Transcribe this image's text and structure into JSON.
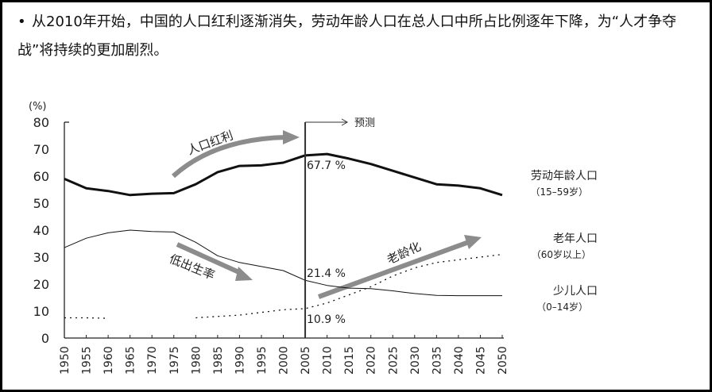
{
  "headline": {
    "bullet": "•",
    "text": "从2010年开始，中国的人口红利逐渐消失，劳动年龄人口在总人口中所占比例逐年下降，为“人才争夺战”将持续的更加剧烈。"
  },
  "chart_data": {
    "type": "line",
    "title": "",
    "xlabel": "",
    "ylabel": "(%)",
    "xlim": [
      1950,
      2050
    ],
    "ylim": [
      0,
      80
    ],
    "yticks": [
      0,
      10,
      20,
      30,
      40,
      50,
      60,
      70,
      80
    ],
    "x": [
      1950,
      1955,
      1960,
      1965,
      1970,
      1975,
      1980,
      1985,
      1990,
      1995,
      2000,
      2005,
      2010,
      2015,
      2020,
      2025,
      2030,
      2035,
      2040,
      2045,
      2050
    ],
    "grid": false,
    "series": [
      {
        "name": "劳动年龄人口",
        "sub": "（15–59岁）",
        "style": "thick",
        "values": [
          59,
          55.5,
          54.5,
          53,
          53.5,
          53.7,
          57,
          61.5,
          63.8,
          64,
          65,
          67.7,
          68.2,
          66.5,
          64.5,
          62,
          59.5,
          57,
          56.5,
          55.5,
          53
        ]
      },
      {
        "name": "少儿人口",
        "sub": "（0–14岁）",
        "style": "thin",
        "values": [
          33.5,
          37,
          39,
          40,
          39.5,
          39.3,
          35.5,
          30.5,
          28,
          26.5,
          25,
          21.4,
          19.5,
          18.5,
          18.3,
          17.5,
          16.5,
          15.8,
          15.7,
          15.7,
          15.7
        ]
      },
      {
        "name": "老年人口",
        "sub": "（60岁以上）",
        "style": "dotted",
        "values": [
          7.5,
          7.5,
          7.3,
          null,
          null,
          null,
          7.5,
          8,
          8.5,
          9.5,
          10.5,
          10.9,
          13,
          16,
          19,
          23,
          26,
          28,
          29,
          30,
          31
        ]
      }
    ],
    "forecast_marker": {
      "year": 2005,
      "label": "预测"
    },
    "annotations": {
      "dividend": "人口红利",
      "low_birth": "低出生率",
      "aging": "老龄化",
      "working_2005": "67.7 %",
      "child_2005": "21.4 %",
      "elderly_2005": "10.9 %"
    },
    "colors": {
      "lines": "#111111",
      "arrows": "#8c8c8c"
    }
  }
}
